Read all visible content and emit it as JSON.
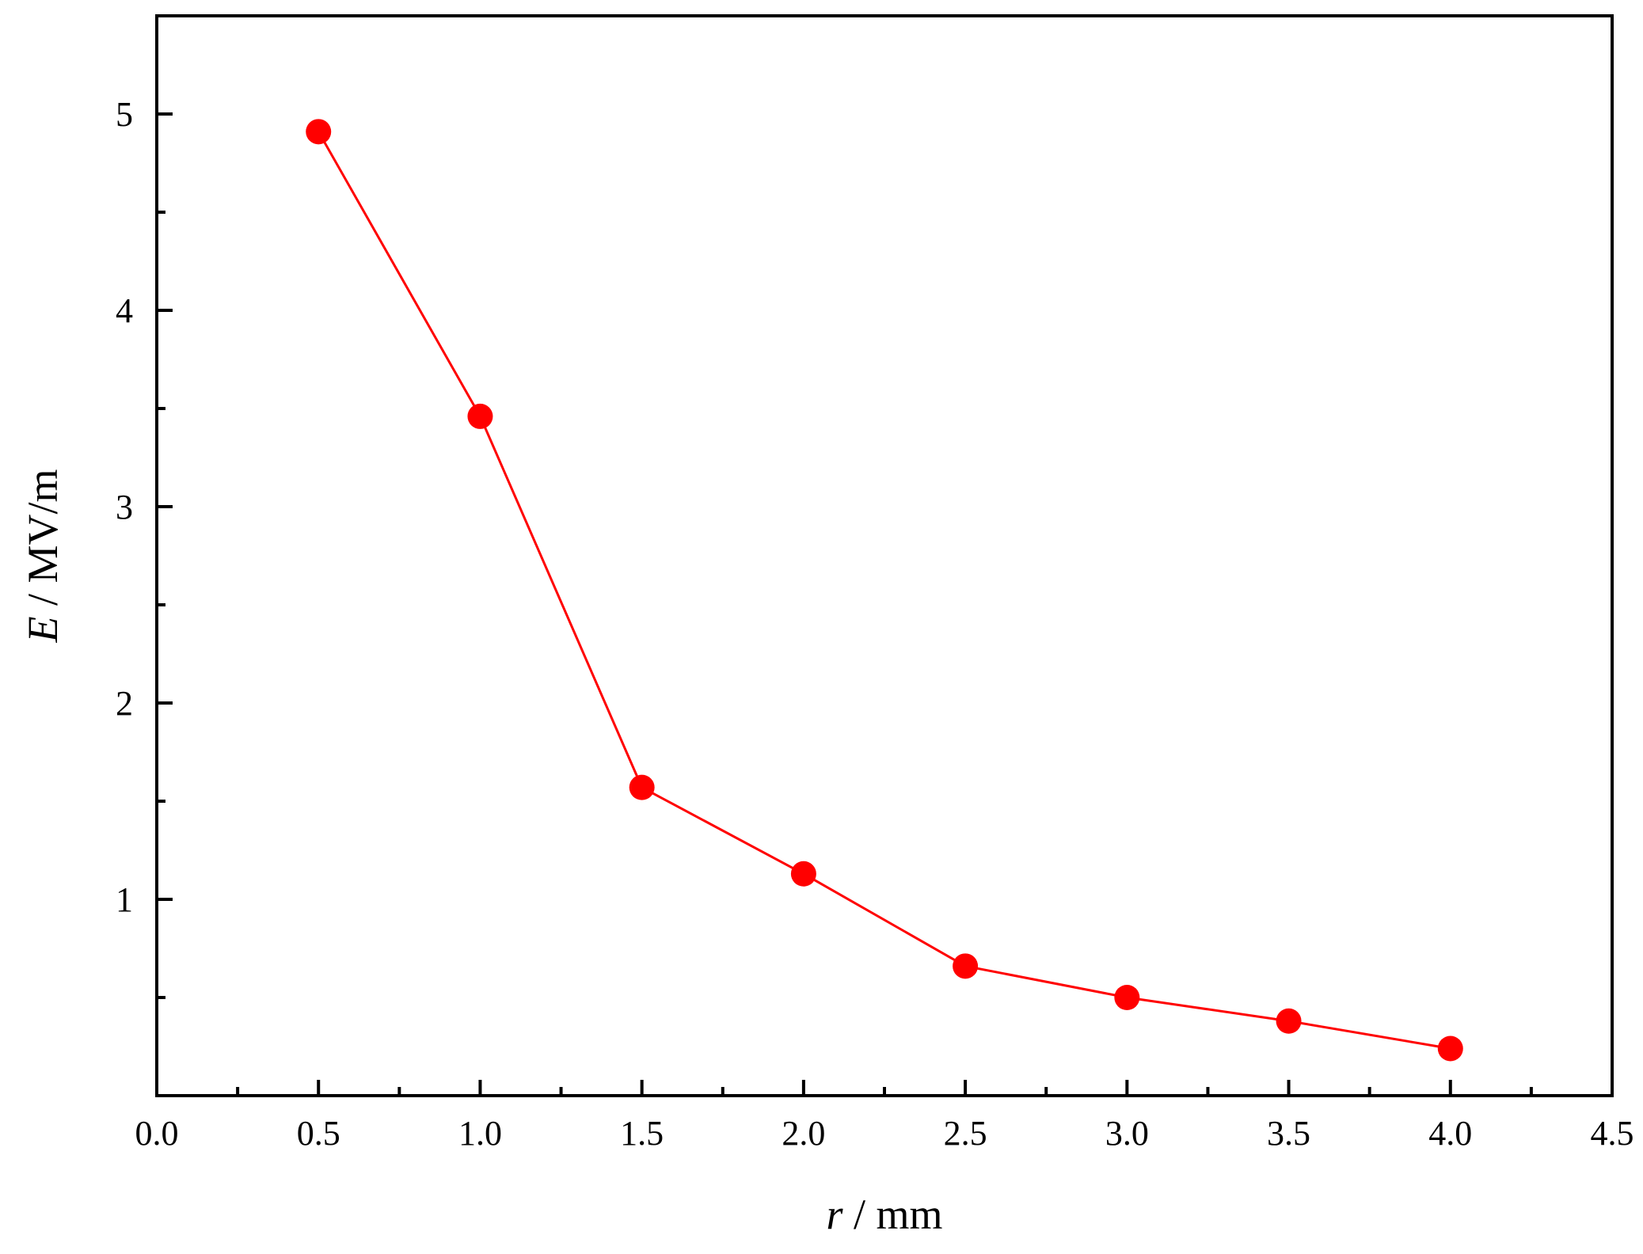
{
  "chart_data": {
    "type": "line",
    "title": "",
    "xlabel": {
      "symbol": "r",
      "unit": " / mm"
    },
    "ylabel": {
      "symbol": "E",
      "unit": " / MV/m"
    },
    "xlim": [
      0,
      4.5
    ],
    "ylim": [
      0,
      5.5
    ],
    "x_ticks": [
      "0.0",
      "0.5",
      "1.0",
      "1.5",
      "2.0",
      "2.5",
      "3.0",
      "3.5",
      "4.0",
      "4.5"
    ],
    "y_ticks": [
      "1",
      "2",
      "3",
      "4",
      "5"
    ],
    "grid": false,
    "series": [
      {
        "color": "#ff0000",
        "marker": "circle",
        "x": [
          0.5,
          1.0,
          1.5,
          2.0,
          2.5,
          3.0,
          3.5,
          4.0
        ],
        "y": [
          4.91,
          3.46,
          1.57,
          1.13,
          0.66,
          0.5,
          0.38,
          0.24
        ]
      }
    ]
  }
}
